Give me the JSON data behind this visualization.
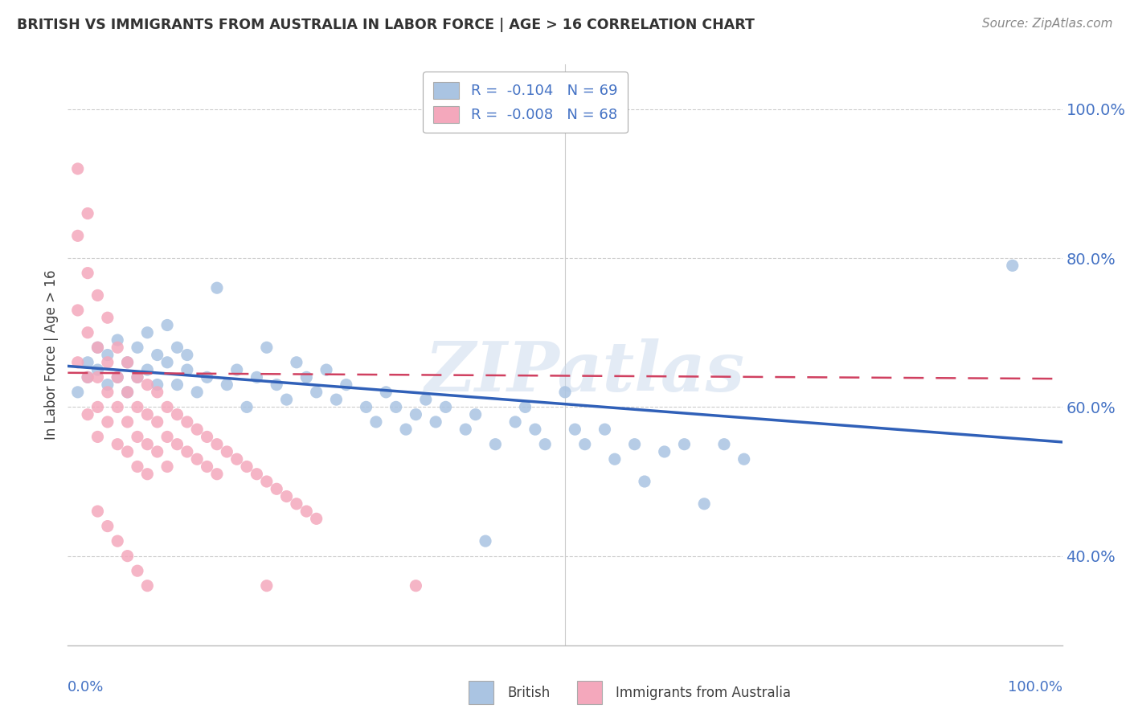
{
  "title": "BRITISH VS IMMIGRANTS FROM AUSTRALIA IN LABOR FORCE | AGE > 16 CORRELATION CHART",
  "source": "Source: ZipAtlas.com",
  "ylabel": "In Labor Force | Age > 16",
  "legend_entry1": "R =  -0.104   N = 69",
  "legend_entry2": "R =  -0.008   N = 68",
  "blue_color": "#aac4e2",
  "pink_color": "#f4a8bc",
  "blue_line_color": "#3060b8",
  "pink_line_color": "#d04060",
  "axis_color": "#4472c4",
  "grid_color": "#cccccc",
  "title_color": "#333333",
  "source_color": "#888888",
  "xlim": [
    0.0,
    1.0
  ],
  "ylim": [
    0.28,
    1.06
  ],
  "ytick_values": [
    0.4,
    0.6,
    0.8,
    1.0
  ],
  "ytick_labels": [
    "40.0%",
    "60.0%",
    "80.0%",
    "100.0%"
  ],
  "brit_x": [
    0.01,
    0.02,
    0.02,
    0.03,
    0.03,
    0.04,
    0.04,
    0.05,
    0.05,
    0.06,
    0.06,
    0.07,
    0.07,
    0.08,
    0.08,
    0.09,
    0.09,
    0.1,
    0.1,
    0.11,
    0.11,
    0.12,
    0.12,
    0.13,
    0.14,
    0.15,
    0.16,
    0.17,
    0.18,
    0.19,
    0.2,
    0.21,
    0.22,
    0.23,
    0.24,
    0.25,
    0.26,
    0.27,
    0.28,
    0.3,
    0.31,
    0.32,
    0.33,
    0.34,
    0.35,
    0.36,
    0.37,
    0.38,
    0.4,
    0.41,
    0.42,
    0.43,
    0.45,
    0.46,
    0.47,
    0.48,
    0.5,
    0.51,
    0.52,
    0.54,
    0.55,
    0.57,
    0.58,
    0.6,
    0.62,
    0.64,
    0.66,
    0.68,
    0.95
  ],
  "brit_y": [
    0.62,
    0.64,
    0.66,
    0.65,
    0.68,
    0.63,
    0.67,
    0.64,
    0.69,
    0.66,
    0.62,
    0.68,
    0.64,
    0.7,
    0.65,
    0.67,
    0.63,
    0.71,
    0.66,
    0.68,
    0.63,
    0.65,
    0.67,
    0.62,
    0.64,
    0.76,
    0.63,
    0.65,
    0.6,
    0.64,
    0.68,
    0.63,
    0.61,
    0.66,
    0.64,
    0.62,
    0.65,
    0.61,
    0.63,
    0.6,
    0.58,
    0.62,
    0.6,
    0.57,
    0.59,
    0.61,
    0.58,
    0.6,
    0.57,
    0.59,
    0.42,
    0.55,
    0.58,
    0.6,
    0.57,
    0.55,
    0.62,
    0.57,
    0.55,
    0.57,
    0.53,
    0.55,
    0.5,
    0.54,
    0.55,
    0.47,
    0.55,
    0.53,
    0.79
  ],
  "aus_x": [
    0.01,
    0.01,
    0.01,
    0.01,
    0.02,
    0.02,
    0.02,
    0.02,
    0.02,
    0.03,
    0.03,
    0.03,
    0.03,
    0.03,
    0.04,
    0.04,
    0.04,
    0.04,
    0.05,
    0.05,
    0.05,
    0.05,
    0.06,
    0.06,
    0.06,
    0.06,
    0.07,
    0.07,
    0.07,
    0.07,
    0.08,
    0.08,
    0.08,
    0.08,
    0.09,
    0.09,
    0.09,
    0.1,
    0.1,
    0.1,
    0.11,
    0.11,
    0.12,
    0.12,
    0.13,
    0.13,
    0.14,
    0.14,
    0.15,
    0.15,
    0.16,
    0.17,
    0.18,
    0.19,
    0.2,
    0.21,
    0.22,
    0.23,
    0.24,
    0.25,
    0.03,
    0.04,
    0.05,
    0.06,
    0.07,
    0.08,
    0.2,
    0.35
  ],
  "aus_y": [
    0.92,
    0.83,
    0.73,
    0.66,
    0.86,
    0.78,
    0.7,
    0.64,
    0.59,
    0.75,
    0.68,
    0.64,
    0.6,
    0.56,
    0.72,
    0.66,
    0.62,
    0.58,
    0.68,
    0.64,
    0.6,
    0.55,
    0.66,
    0.62,
    0.58,
    0.54,
    0.64,
    0.6,
    0.56,
    0.52,
    0.63,
    0.59,
    0.55,
    0.51,
    0.62,
    0.58,
    0.54,
    0.6,
    0.56,
    0.52,
    0.59,
    0.55,
    0.58,
    0.54,
    0.57,
    0.53,
    0.56,
    0.52,
    0.55,
    0.51,
    0.54,
    0.53,
    0.52,
    0.51,
    0.5,
    0.49,
    0.48,
    0.47,
    0.46,
    0.45,
    0.46,
    0.44,
    0.42,
    0.4,
    0.38,
    0.36,
    0.36,
    0.36
  ],
  "brit_trend_x": [
    0.0,
    1.0
  ],
  "brit_trend_y": [
    0.655,
    0.553
  ],
  "aus_trend_x": [
    0.0,
    1.0
  ],
  "aus_trend_y": [
    0.646,
    0.638
  ]
}
